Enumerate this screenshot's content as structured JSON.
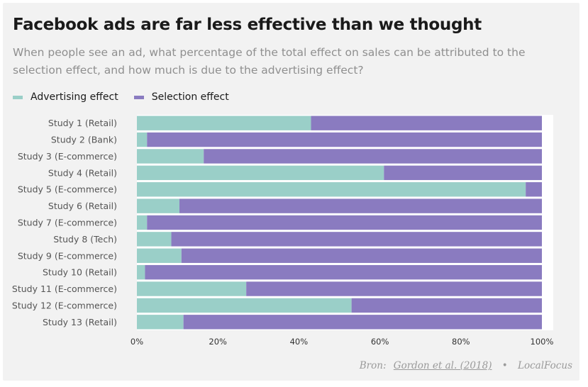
{
  "header": {
    "title": "Facebook ads are far less effective than we thought",
    "subtitle": "When people see an ad, what percentage of the total effect on sales can be attributed to the selection effect, and how much is due to the advertising effect?"
  },
  "legend": {
    "items": [
      {
        "label": "Advertising effect",
        "color": "#9acfc8"
      },
      {
        "label": "Selection effect",
        "color": "#8a7bc0"
      }
    ]
  },
  "chart_data": {
    "type": "bar",
    "orientation": "horizontal",
    "stacked": true,
    "categories": [
      "Study 1 (Retail)",
      "Study 2 (Bank)",
      "Study 3 (E-commerce)",
      "Study 4 (Retail)",
      "Study 5 (E-commerce)",
      "Study 6 (Retail)",
      "Study 7 (E-commerce)",
      "Study 8 (Tech)",
      "Study 9 (E-commerce)",
      "Study 10 (Retail)",
      "Study 11 (E-commerce)",
      "Study 12 (E-commerce)",
      "Study 13 (Retail)"
    ],
    "series": [
      {
        "name": "Advertising effect",
        "color": "#9acfc8",
        "values": [
          43,
          2.5,
          16.5,
          61,
          96,
          10.5,
          2.5,
          8.5,
          11,
          2,
          27,
          53,
          11.5
        ]
      },
      {
        "name": "Selection effect",
        "color": "#8a7bc0",
        "values": [
          57,
          97.5,
          83.5,
          39,
          4,
          89.5,
          97.5,
          91.5,
          89,
          98,
          73,
          47,
          88.5
        ]
      }
    ],
    "xlim": [
      0,
      100
    ],
    "xticks": [
      "0%",
      "20%",
      "40%",
      "60%",
      "80%",
      "100%"
    ],
    "xtick_values": [
      0,
      20,
      40,
      60,
      80,
      100
    ],
    "legend_position": "top-left",
    "grid": false
  },
  "footer": {
    "source_prefix": "Bron:",
    "source_link": "Gordon et al. (2018)",
    "separator": "•",
    "credit": "LocalFocus"
  }
}
